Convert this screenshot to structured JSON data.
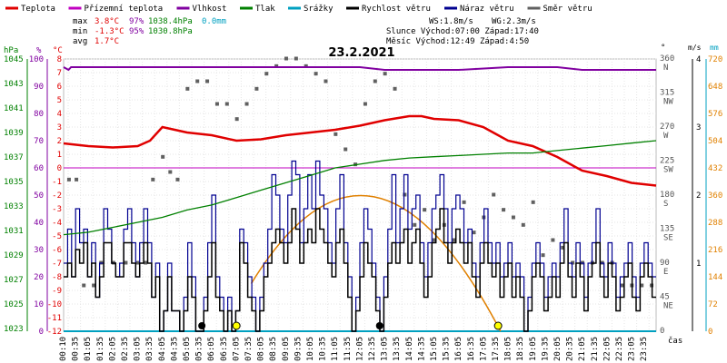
{
  "chart_data": {
    "type": "line",
    "title": "23.2.2021",
    "legend": [
      {
        "label": "Teplota",
        "color": "#e00000"
      },
      {
        "label": "Přízemní teplota",
        "color": "#c000c0"
      },
      {
        "label": "Vlhkost",
        "color": "#8000a0"
      },
      {
        "label": "Tlak",
        "color": "#008000"
      },
      {
        "label": "Srážky",
        "color": "#00a0c0"
      },
      {
        "label": "Rychlost větru",
        "color": "#000000"
      },
      {
        "label": "Náraz větru",
        "color": "#000090"
      },
      {
        "label": "Směr větru",
        "color": "#606060"
      }
    ],
    "stats": {
      "max_label": "max",
      "max_temp": "3.8°C",
      "max_hum": "97%",
      "max_press": "1038.4hPa",
      "max_rain": "0.0mm",
      "min_label": "min",
      "min_temp": "-1.3°C",
      "min_hum": "95%",
      "min_press": "1030.8hPa",
      "avg_label": "avg",
      "avg_temp": "1.7°C"
    },
    "info": {
      "ws": "WS:1.8m/s",
      "wg": "WG:2.3m/s",
      "sun": "Slunce Východ:07:00  Západ:17:40",
      "moon": "Měsíc  Východ:12:49  Západ:4:50"
    },
    "axes": {
      "hpa": {
        "unit": "hPa",
        "ticks": [
          "1045",
          "1043",
          "1041",
          "1039",
          "1037",
          "1035",
          "1033",
          "1031",
          "1029",
          "1027",
          "1025",
          "1023"
        ]
      },
      "pct": {
        "unit": "%",
        "ticks": [
          "100",
          "90",
          "80",
          "70",
          "60",
          "50",
          "40",
          "30",
          "20",
          "10",
          "0"
        ]
      },
      "temp": {
        "unit": "°C",
        "ticks": [
          "8",
          "7",
          "6",
          "5",
          "4",
          "3",
          "2",
          "1",
          "0",
          "-1",
          "-2",
          "-3",
          "-4",
          "-5",
          "-6",
          "-7",
          "-8",
          "-9",
          "-10",
          "-11",
          "-12"
        ],
        "range": [
          -12,
          8
        ]
      },
      "dir": {
        "unit": "°",
        "ticks": [
          {
            "deg": "360",
            "lbl": "N"
          },
          {
            "deg": "315",
            "lbl": "NW"
          },
          {
            "deg": "270",
            "lbl": "W"
          },
          {
            "deg": "225",
            "lbl": "SW"
          },
          {
            "deg": "180",
            "lbl": "S"
          },
          {
            "deg": "135",
            "lbl": "SE"
          },
          {
            "deg": "90",
            "lbl": "E"
          },
          {
            "deg": "45",
            "lbl": "NE"
          },
          {
            "deg": "0",
            "lbl": ""
          }
        ]
      },
      "ms": {
        "unit": "m/s",
        "ticks": [
          "4",
          "3",
          "2",
          "1"
        ],
        "range": [
          0,
          4
        ]
      },
      "mm": {
        "unit": "mm",
        "ticks": [
          "720",
          "648",
          "576",
          "504",
          "432",
          "360",
          "288",
          "216",
          "144",
          "72",
          "0"
        ]
      },
      "x_ticks": [
        "00:10",
        "00:35",
        "01:05",
        "01:35",
        "02:05",
        "02:35",
        "03:05",
        "03:35",
        "04:05",
        "04:35",
        "05:05",
        "05:35",
        "06:05",
        "06:35",
        "07:05",
        "07:35",
        "08:05",
        "08:35",
        "09:05",
        "09:35",
        "10:05",
        "10:35",
        "11:05",
        "11:35",
        "12:05",
        "12:35",
        "13:05",
        "13:35",
        "14:05",
        "14:35",
        "15:05",
        "15:35",
        "16:05",
        "16:35",
        "17:05",
        "17:35",
        "18:05",
        "18:35",
        "19:05",
        "19:35",
        "20:05",
        "20:35",
        "21:05",
        "21:35",
        "22:05",
        "22:35",
        "23:05",
        "23:35"
      ],
      "x_label": "čas"
    },
    "series": [
      {
        "name": "Teplota",
        "color": "#e00000",
        "x": [
          0,
          1,
          2,
          3,
          3.5,
          4,
          4.5,
          5,
          6,
          7,
          8,
          9,
          10,
          11,
          12,
          13,
          14,
          14.5,
          15,
          16,
          17,
          17.5,
          18,
          19,
          20,
          21,
          22,
          23,
          24
        ],
        "y": [
          1.8,
          1.6,
          1.5,
          1.6,
          2.0,
          3.0,
          2.8,
          2.6,
          2.4,
          2.0,
          2.1,
          2.4,
          2.6,
          2.8,
          3.1,
          3.5,
          3.8,
          3.8,
          3.6,
          3.5,
          3.0,
          2.5,
          2.0,
          1.6,
          0.8,
          -0.2,
          -0.6,
          -1.1,
          -1.3
        ]
      },
      {
        "name": "Vlhkost",
        "color": "#8000a0",
        "unit": "%",
        "x": [
          0,
          0.2,
          0.3,
          6,
          11,
          12,
          13,
          16,
          18,
          20,
          21,
          22,
          23,
          24
        ],
        "y": [
          97,
          96,
          97,
          97,
          97,
          97,
          96,
          96,
          97,
          97,
          96,
          96,
          96,
          96
        ]
      },
      {
        "name": "Tlak",
        "color": "#008000",
        "unit": "hPa",
        "x": [
          0,
          1,
          2,
          3,
          4,
          5,
          6,
          7,
          8,
          9,
          10,
          11,
          12,
          13,
          14,
          15,
          16,
          17,
          18,
          19,
          20,
          21,
          22,
          23,
          24
        ],
        "y": [
          1030.8,
          1031.0,
          1031.4,
          1031.8,
          1032.2,
          1032.8,
          1033.2,
          1033.8,
          1034.4,
          1035.0,
          1035.6,
          1036.2,
          1036.5,
          1036.8,
          1037.0,
          1037.1,
          1037.2,
          1037.3,
          1037.4,
          1037.4,
          1037.6,
          1037.8,
          1038.0,
          1038.2,
          1038.4
        ]
      },
      {
        "name": "Přízemní teplota",
        "color": "#c000c0",
        "x": [
          0,
          24
        ],
        "y": [
          0,
          0
        ]
      },
      {
        "name": "Srážky",
        "color": "#00a0c0",
        "unit": "mm",
        "x": [
          0,
          24
        ],
        "y": [
          0,
          0
        ]
      }
    ],
    "wind_speed": {
      "name": "Rychlost větru",
      "color": "#000000",
      "values": [
        0.8,
        1.0,
        0.8,
        1.2,
        1.0,
        1.3,
        0.8,
        1.0,
        0.5,
        0.8,
        1.3,
        1.3,
        1.0,
        0.8,
        0.8,
        1.3,
        1.3,
        1.0,
        0.8,
        1.0,
        1.3,
        1.0,
        0.5,
        0.8,
        0.0,
        0.3,
        0.8,
        0.3,
        0.3,
        0.0,
        0.3,
        0.8,
        0.5,
        0.0,
        0.0,
        0.3,
        0.8,
        1.3,
        0.5,
        0.3,
        0.0,
        0.3,
        0.0,
        0.3,
        1.3,
        1.0,
        0.5,
        0.3,
        0.0,
        0.3,
        0.8,
        1.0,
        1.3,
        1.5,
        1.3,
        1.0,
        1.3,
        1.8,
        1.5,
        1.0,
        1.3,
        1.5,
        1.3,
        1.8,
        1.5,
        1.3,
        1.0,
        0.8,
        1.3,
        1.5,
        1.0,
        0.5,
        0.0,
        0.3,
        0.8,
        1.3,
        1.0,
        0.8,
        0.3,
        0.0,
        0.5,
        1.0,
        1.3,
        1.0,
        1.3,
        1.5,
        1.0,
        1.3,
        1.5,
        1.0,
        0.5,
        0.8,
        1.3,
        1.5,
        1.8,
        1.3,
        1.0,
        1.3,
        1.5,
        1.3,
        1.0,
        1.3,
        0.8,
        0.5,
        1.0,
        1.3,
        1.0,
        0.8,
        1.0,
        0.5,
        0.8,
        1.0,
        0.5,
        0.8,
        0.5,
        0.0,
        0.3,
        0.8,
        1.0,
        0.8,
        0.3,
        0.5,
        0.8,
        0.5,
        1.0,
        1.3,
        0.8,
        0.5,
        1.0,
        0.8,
        0.3,
        0.8,
        1.0,
        1.3,
        0.8,
        0.5,
        1.0,
        0.8,
        0.3,
        0.5,
        0.8,
        1.0,
        0.5,
        0.3,
        0.8,
        1.0,
        0.8,
        0.5
      ]
    },
    "wind_gust": {
      "name": "Náraz větru",
      "color": "#000090",
      "values": [
        1.0,
        1.5,
        0.8,
        1.8,
        1.3,
        1.5,
        0.8,
        1.3,
        0.5,
        1.0,
        1.8,
        1.5,
        1.0,
        0.8,
        1.0,
        1.5,
        1.8,
        1.3,
        0.8,
        1.3,
        1.8,
        1.3,
        0.5,
        1.0,
        0.0,
        0.3,
        1.0,
        0.3,
        0.3,
        0.0,
        0.5,
        1.3,
        0.8,
        0.0,
        0.0,
        0.5,
        1.3,
        2.0,
        0.8,
        0.5,
        0.0,
        0.5,
        0.0,
        0.3,
        1.5,
        1.3,
        0.8,
        0.5,
        0.0,
        0.5,
        1.0,
        1.5,
        2.3,
        2.0,
        1.5,
        1.3,
        2.0,
        2.5,
        2.3,
        1.3,
        1.8,
        2.3,
        1.8,
        2.5,
        2.0,
        1.8,
        1.3,
        1.0,
        1.8,
        2.3,
        1.3,
        0.8,
        0.0,
        0.5,
        1.3,
        1.8,
        1.5,
        1.0,
        0.5,
        0.0,
        0.8,
        1.5,
        2.3,
        1.3,
        1.8,
        2.3,
        1.5,
        1.8,
        2.0,
        1.3,
        0.8,
        1.3,
        1.8,
        2.0,
        2.3,
        1.8,
        1.3,
        1.8,
        2.0,
        1.8,
        1.3,
        1.5,
        1.0,
        0.8,
        1.3,
        1.8,
        1.3,
        1.0,
        1.3,
        0.8,
        1.0,
        1.3,
        0.8,
        1.0,
        0.8,
        0.0,
        0.5,
        1.0,
        1.3,
        1.0,
        0.5,
        0.8,
        1.0,
        0.8,
        1.3,
        1.8,
        1.0,
        0.8,
        1.3,
        1.0,
        0.5,
        1.0,
        1.3,
        1.8,
        1.0,
        0.8,
        1.3,
        1.0,
        0.5,
        0.8,
        1.0,
        1.3,
        0.8,
        0.5,
        1.0,
        1.3,
        1.0,
        0.8
      ]
    },
    "wind_direction": {
      "name": "Směr větru",
      "color": "#606060",
      "unit": "°",
      "x": [
        0.2,
        0.5,
        0.8,
        1.2,
        1.5,
        2.0,
        2.5,
        3.0,
        3.3,
        3.6,
        4.0,
        4.3,
        4.6,
        5.0,
        5.4,
        5.8,
        6.2,
        6.6,
        7.0,
        7.4,
        7.8,
        8.2,
        8.6,
        9.0,
        9.4,
        9.8,
        10.2,
        10.6,
        11.0,
        11.4,
        11.8,
        12.2,
        12.6,
        13.0,
        13.4,
        13.8,
        14.2,
        14.6,
        15.0,
        15.4,
        15.8,
        16.2,
        16.6,
        17.0,
        17.4,
        17.8,
        18.2,
        18.6,
        19.0,
        19.4,
        19.8,
        20.2,
        20.6,
        21.0,
        21.4,
        21.8,
        22.2,
        22.6,
        23.0,
        23.4,
        23.8
      ],
      "y": [
        200,
        200,
        60,
        60,
        90,
        90,
        90,
        90,
        90,
        200,
        230,
        210,
        200,
        320,
        330,
        330,
        300,
        300,
        280,
        300,
        320,
        340,
        350,
        360,
        360,
        350,
        340,
        330,
        260,
        240,
        220,
        300,
        330,
        340,
        320,
        180,
        140,
        160,
        120,
        140,
        120,
        170,
        130,
        150,
        180,
        160,
        150,
        140,
        170,
        100,
        120,
        110,
        90,
        90,
        90,
        90,
        90,
        60,
        60,
        60,
        60
      ]
    }
  }
}
